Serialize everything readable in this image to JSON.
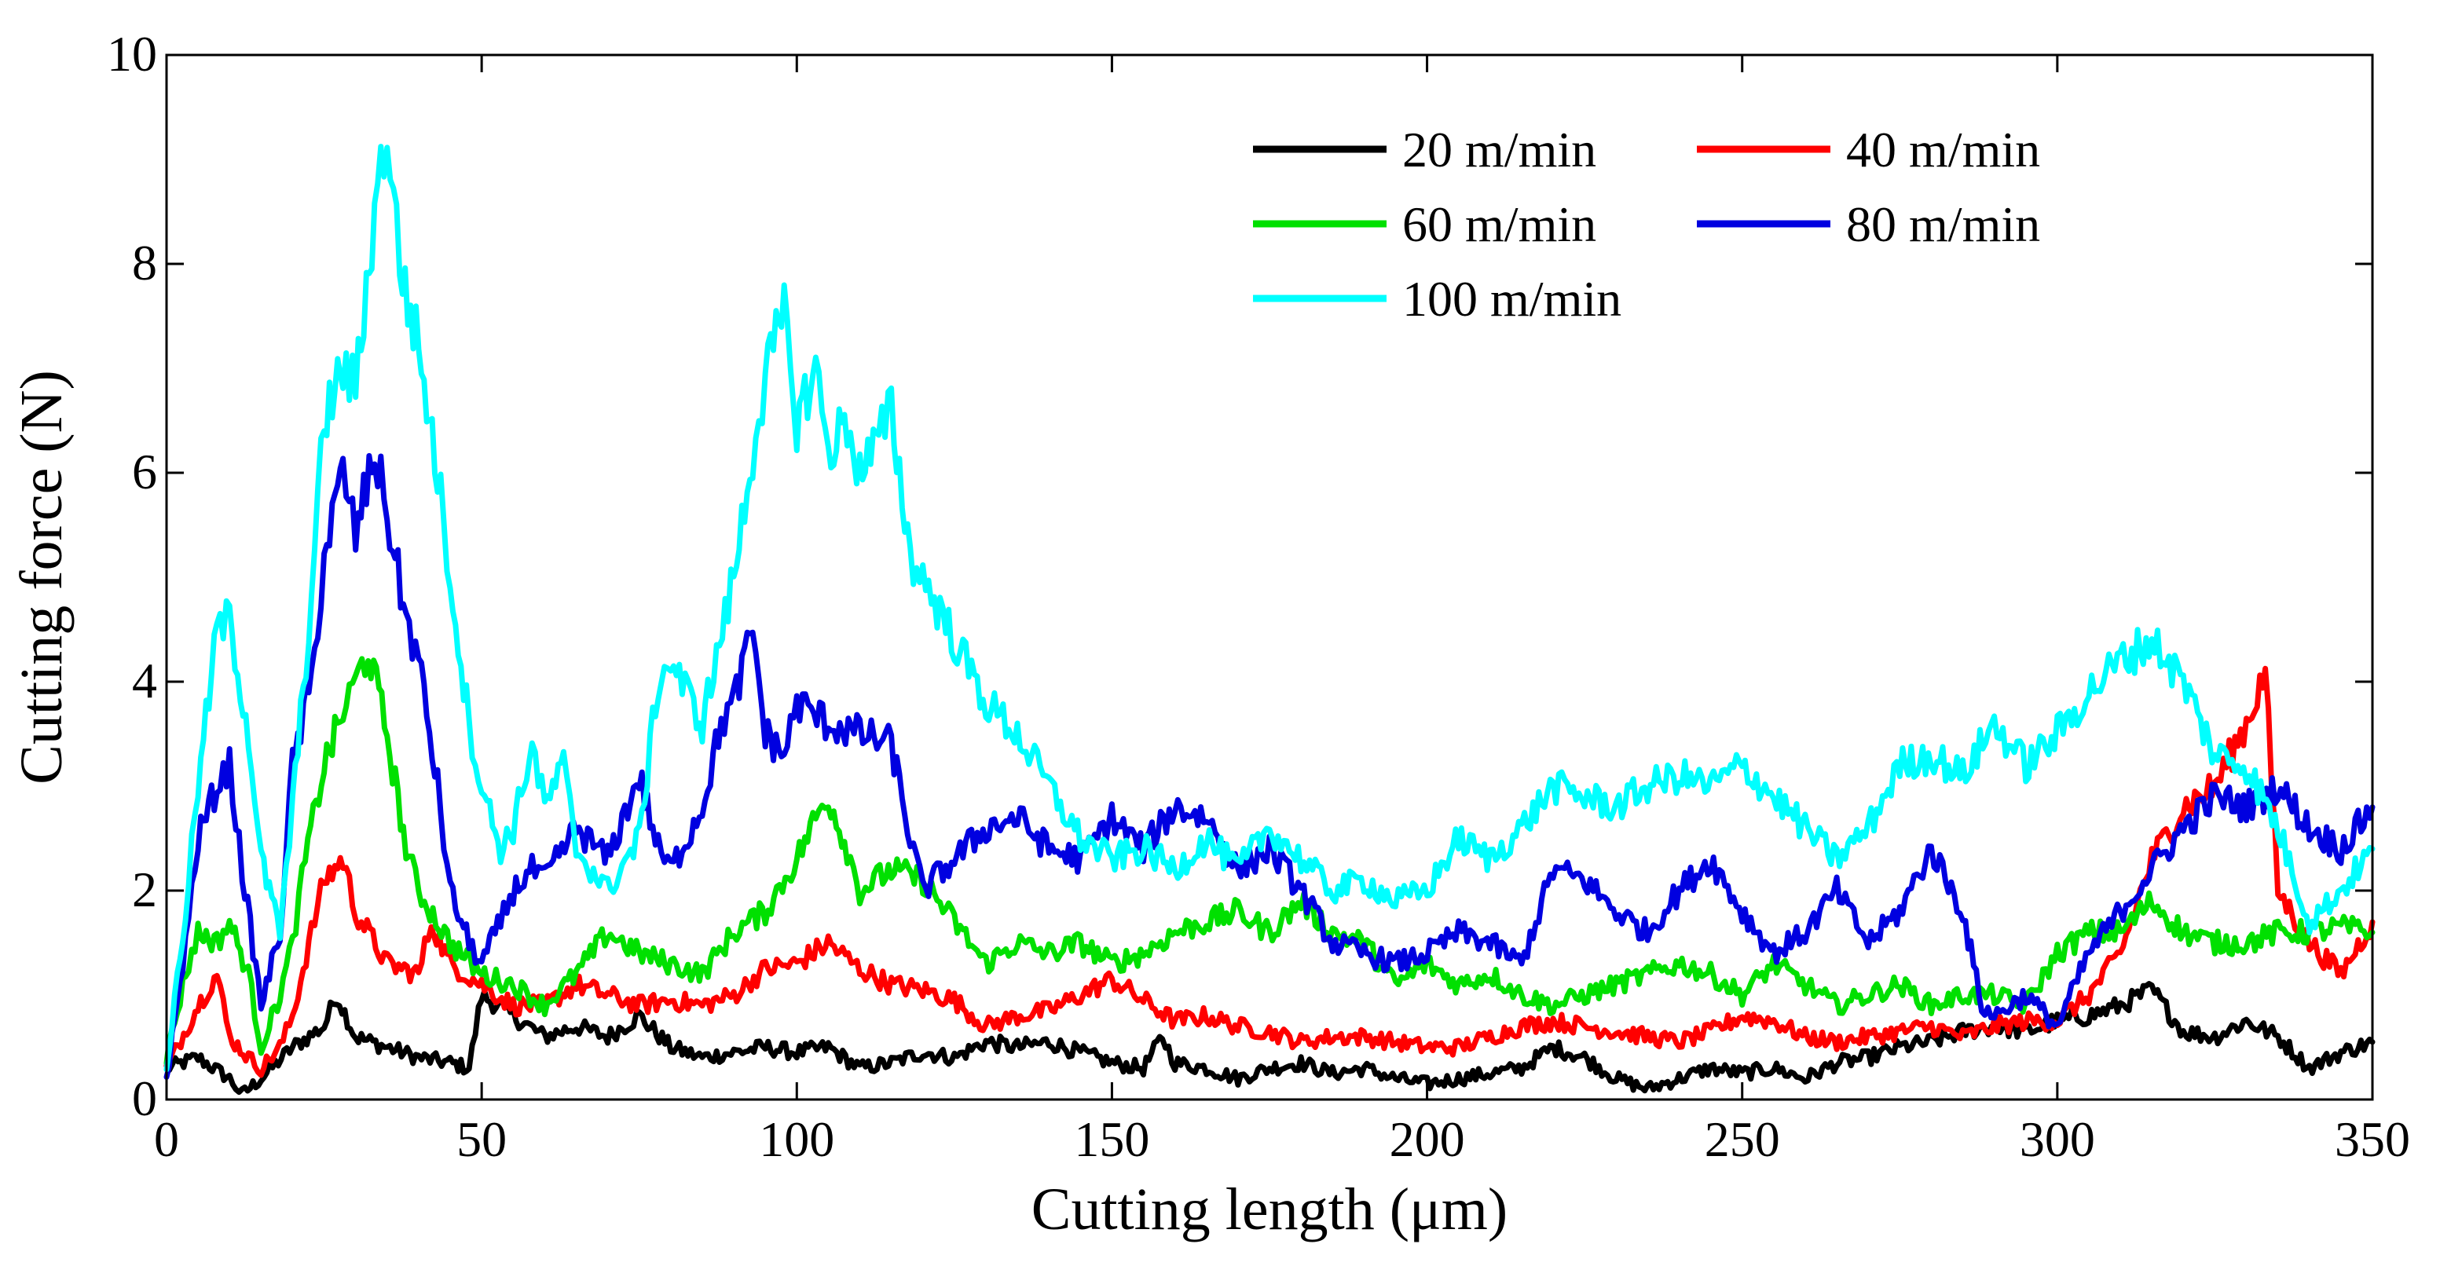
{
  "chart_data": {
    "type": "line",
    "title": "",
    "xlabel": "Cutting length (μm)",
    "ylabel": "Cutting force (N)",
    "xlim": [
      0,
      350
    ],
    "ylim": [
      0,
      10
    ],
    "xticks": [
      0,
      50,
      100,
      150,
      200,
      250,
      300,
      350
    ],
    "yticks": [
      0,
      2,
      4,
      6,
      8,
      10
    ],
    "grid": false,
    "legend": {
      "placement": "top-right",
      "columns": 2
    },
    "series": [
      {
        "name": "20 m/min",
        "color": "#000000",
        "x": [
          0,
          5,
          10,
          12,
          15,
          20,
          25,
          27,
          30,
          35,
          40,
          45,
          48,
          50,
          55,
          60,
          65,
          70,
          75,
          80,
          85,
          90,
          95,
          100,
          105,
          110,
          115,
          120,
          125,
          130,
          135,
          140,
          145,
          150,
          155,
          158,
          160,
          165,
          170,
          175,
          180,
          185,
          190,
          195,
          200,
          205,
          210,
          215,
          220,
          225,
          230,
          235,
          240,
          245,
          250,
          255,
          260,
          265,
          270,
          275,
          280,
          285,
          290,
          295,
          300,
          305,
          310,
          315,
          320,
          325,
          330,
          335,
          340,
          345,
          350
        ],
        "values": [
          0.3,
          0.4,
          0.2,
          0.05,
          0.2,
          0.5,
          0.7,
          1.0,
          0.6,
          0.5,
          0.4,
          0.35,
          0.3,
          1.0,
          0.8,
          0.6,
          0.7,
          0.6,
          0.8,
          0.5,
          0.4,
          0.45,
          0.5,
          0.45,
          0.5,
          0.3,
          0.35,
          0.45,
          0.4,
          0.55,
          0.5,
          0.55,
          0.45,
          0.35,
          0.3,
          0.6,
          0.35,
          0.3,
          0.2,
          0.3,
          0.35,
          0.25,
          0.3,
          0.2,
          0.15,
          0.2,
          0.25,
          0.3,
          0.5,
          0.4,
          0.2,
          0.1,
          0.2,
          0.3,
          0.25,
          0.3,
          0.2,
          0.35,
          0.4,
          0.5,
          0.55,
          0.65,
          0.7,
          0.65,
          0.75,
          0.8,
          0.9,
          1.05,
          0.65,
          0.6,
          0.75,
          0.6,
          0.3,
          0.45,
          0.55
        ]
      },
      {
        "name": "40 m/min",
        "color": "#ff0000",
        "x": [
          0,
          5,
          8,
          10,
          13,
          15,
          18,
          20,
          23,
          25,
          28,
          30,
          35,
          40,
          42,
          45,
          50,
          55,
          60,
          65,
          70,
          75,
          80,
          85,
          90,
          95,
          100,
          105,
          110,
          115,
          120,
          125,
          130,
          135,
          140,
          145,
          150,
          155,
          160,
          165,
          170,
          175,
          180,
          185,
          190,
          195,
          200,
          205,
          210,
          215,
          220,
          225,
          230,
          235,
          240,
          245,
          250,
          255,
          260,
          265,
          270,
          275,
          280,
          285,
          290,
          295,
          300,
          305,
          310,
          315,
          320,
          325,
          330,
          333,
          335,
          340,
          345,
          350
        ],
        "values": [
          0.3,
          0.9,
          1.2,
          0.6,
          0.4,
          0.3,
          0.5,
          0.8,
          1.6,
          2.1,
          2.3,
          1.8,
          1.3,
          1.2,
          1.7,
          1.3,
          1.1,
          0.9,
          0.9,
          1.1,
          1.0,
          0.9,
          0.95,
          0.9,
          1.0,
          1.25,
          1.3,
          1.5,
          1.25,
          1.1,
          1.05,
          0.95,
          0.7,
          0.8,
          0.85,
          1.0,
          1.15,
          0.95,
          0.75,
          0.8,
          0.7,
          0.65,
          0.55,
          0.6,
          0.6,
          0.55,
          0.5,
          0.5,
          0.6,
          0.7,
          0.75,
          0.7,
          0.65,
          0.6,
          0.55,
          0.65,
          0.8,
          0.75,
          0.6,
          0.55,
          0.6,
          0.65,
          0.7,
          0.6,
          0.7,
          0.75,
          0.75,
          1.0,
          1.4,
          2.3,
          2.8,
          3.0,
          3.6,
          4.1,
          2.0,
          1.5,
          1.2,
          1.7
        ]
      },
      {
        "name": "60 m/min",
        "color": "#00e000",
        "x": [
          0,
          3,
          5,
          8,
          10,
          13,
          15,
          18,
          20,
          22,
          25,
          28,
          30,
          32,
          35,
          38,
          40,
          45,
          50,
          55,
          60,
          65,
          70,
          75,
          80,
          85,
          90,
          95,
          100,
          103,
          105,
          108,
          110,
          115,
          120,
          125,
          130,
          135,
          140,
          145,
          150,
          155,
          160,
          165,
          170,
          175,
          180,
          185,
          190,
          195,
          200,
          205,
          210,
          215,
          220,
          225,
          230,
          235,
          240,
          245,
          250,
          255,
          260,
          265,
          270,
          275,
          280,
          285,
          290,
          295,
          300,
          305,
          310,
          315,
          320,
          325,
          330,
          335,
          340,
          345,
          350
        ],
        "values": [
          0.4,
          1.2,
          1.6,
          1.5,
          1.7,
          1.2,
          0.5,
          1.0,
          1.5,
          2.3,
          3.2,
          3.7,
          4.0,
          4.3,
          3.5,
          2.4,
          2.0,
          1.5,
          1.2,
          1.1,
          0.9,
          1.2,
          1.6,
          1.4,
          1.3,
          1.2,
          1.6,
          1.8,
          2.3,
          2.7,
          2.9,
          2.4,
          2.0,
          2.2,
          2.1,
          1.7,
          1.3,
          1.5,
          1.4,
          1.5,
          1.3,
          1.4,
          1.6,
          1.7,
          1.8,
          1.6,
          1.9,
          1.6,
          1.5,
          1.1,
          1.3,
          1.1,
          1.2,
          1.0,
          0.9,
          1.0,
          1.1,
          1.2,
          1.3,
          1.2,
          1.0,
          1.3,
          1.1,
          0.9,
          1.0,
          1.1,
          0.9,
          1.0,
          1.0,
          0.9,
          1.4,
          1.6,
          1.6,
          1.9,
          1.6,
          1.5,
          1.5,
          1.6,
          1.6,
          1.65,
          1.6
        ]
      },
      {
        "name": "80 m/min",
        "color": "#0000e0",
        "x": [
          0,
          3,
          5,
          8,
          10,
          12,
          15,
          18,
          20,
          23,
          25,
          28,
          30,
          33,
          35,
          38,
          40,
          43,
          45,
          48,
          50,
          53,
          55,
          58,
          60,
          65,
          70,
          75,
          78,
          80,
          85,
          88,
          90,
          93,
          95,
          98,
          100,
          105,
          110,
          115,
          118,
          120,
          125,
          130,
          135,
          140,
          145,
          150,
          155,
          160,
          165,
          170,
          175,
          180,
          185,
          190,
          195,
          200,
          205,
          210,
          215,
          220,
          225,
          230,
          235,
          240,
          245,
          250,
          255,
          260,
          265,
          270,
          275,
          280,
          285,
          288,
          290,
          295,
          300,
          305,
          310,
          315,
          320,
          325,
          330,
          335,
          340,
          345,
          350
        ],
        "values": [
          0.2,
          1.5,
          2.5,
          3.0,
          3.2,
          2.2,
          0.9,
          1.6,
          3.2,
          4.0,
          5.2,
          6.0,
          5.4,
          6.2,
          5.6,
          4.6,
          4.2,
          3.0,
          2.0,
          1.5,
          1.3,
          1.7,
          2.0,
          2.2,
          2.1,
          2.6,
          2.3,
          3.1,
          2.4,
          2.2,
          2.8,
          3.6,
          3.8,
          4.5,
          3.5,
          3.3,
          3.8,
          3.6,
          3.5,
          3.4,
          2.5,
          2.0,
          2.3,
          2.6,
          2.7,
          2.4,
          2.3,
          2.7,
          2.4,
          2.8,
          2.7,
          2.2,
          2.4,
          2.0,
          1.5,
          1.4,
          1.3,
          1.4,
          1.6,
          1.5,
          1.3,
          2.2,
          2.1,
          1.8,
          1.6,
          2.0,
          2.3,
          1.8,
          1.4,
          1.6,
          2.0,
          1.5,
          1.8,
          2.4,
          1.8,
          0.9,
          0.8,
          1.0,
          0.7,
          1.4,
          1.8,
          2.2,
          2.6,
          2.9,
          2.8,
          3.0,
          2.6,
          2.4,
          2.8
        ]
      },
      {
        "name": "100 m/min",
        "color": "#00ffff",
        "x": [
          0,
          3,
          5,
          8,
          10,
          13,
          15,
          18,
          20,
          23,
          25,
          28,
          30,
          33,
          35,
          37,
          40,
          43,
          45,
          48,
          50,
          53,
          55,
          58,
          60,
          63,
          65,
          70,
          75,
          78,
          80,
          85,
          90,
          93,
          95,
          98,
          100,
          103,
          105,
          108,
          110,
          113,
          115,
          118,
          120,
          125,
          130,
          135,
          140,
          145,
          150,
          155,
          160,
          165,
          170,
          175,
          180,
          185,
          190,
          195,
          200,
          205,
          210,
          215,
          220,
          225,
          230,
          235,
          240,
          245,
          250,
          255,
          260,
          265,
          270,
          275,
          280,
          285,
          290,
          295,
          300,
          305,
          310,
          315,
          320,
          325,
          330,
          335,
          340,
          345,
          350
        ],
        "values": [
          0.3,
          1.8,
          3.0,
          4.5,
          4.6,
          3.5,
          2.3,
          1.6,
          2.8,
          4.8,
          6.5,
          7.0,
          6.8,
          8.5,
          9.3,
          8.0,
          7.2,
          6.0,
          5.0,
          3.6,
          3.0,
          2.4,
          2.6,
          3.4,
          2.8,
          3.2,
          2.4,
          2.0,
          2.5,
          4.0,
          4.2,
          3.6,
          5.0,
          6.2,
          6.9,
          7.5,
          6.5,
          7.0,
          6.2,
          6.5,
          6.0,
          6.3,
          6.6,
          5.2,
          5.0,
          4.4,
          3.8,
          3.5,
          3.0,
          2.5,
          2.3,
          2.4,
          2.2,
          2.5,
          2.2,
          2.6,
          2.3,
          2.0,
          2.1,
          1.9,
          2.0,
          2.5,
          2.3,
          2.6,
          3.0,
          2.9,
          2.8,
          3.0,
          3.1,
          3.0,
          3.2,
          2.9,
          2.6,
          2.3,
          2.6,
          3.2,
          3.3,
          3.1,
          3.6,
          3.2,
          3.5,
          3.9,
          4.2,
          4.4,
          4.0,
          3.3,
          3.2,
          2.6,
          1.7,
          2.0,
          2.4
        ]
      }
    ]
  }
}
